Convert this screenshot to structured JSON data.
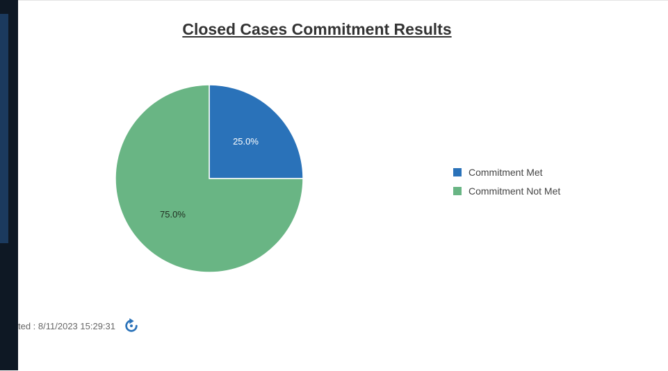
{
  "chart_data": {
    "type": "pie",
    "title": "Closed Cases Commitment Results",
    "categories": [
      "Commitment Met",
      "Commitment Not Met"
    ],
    "values": [
      25.0,
      75.0
    ],
    "labels": [
      "25.0%",
      "75.0%"
    ],
    "colors": [
      "#2a72b9",
      "#69b584"
    ],
    "legend_position": "right"
  },
  "footer": {
    "last_updated_text": "ted : 8/11/2023 15:29:31",
    "refresh_icon": "refresh-icon"
  },
  "colors": {
    "accent": "#2a72b9",
    "slice_label_met": "#ffffff",
    "slice_label_not_met": "#1f2d1f"
  }
}
